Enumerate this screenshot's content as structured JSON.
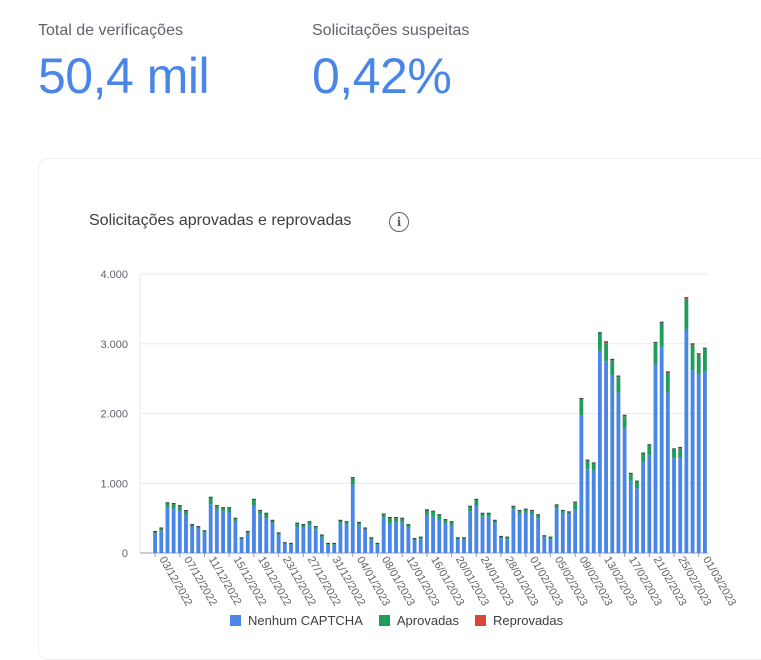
{
  "metrics": {
    "total": {
      "label": "Total de verificações",
      "value": "50,4 mil"
    },
    "suspicious": {
      "label": "Solicitações suspeitas",
      "value": "0,42%"
    }
  },
  "card": {
    "title": "Solicitações aprovadas e reprovadas",
    "info_icon": "info-icon"
  },
  "colors": {
    "none": "#4a86e8",
    "approved": "#1e9e5a",
    "rejected": "#db4437",
    "grid": "#e8eaed",
    "axis": "#9aa0a6"
  },
  "chart_data": {
    "type": "bar",
    "stacked": true,
    "title": "Solicitações aprovadas e reprovadas",
    "xlabel": "",
    "ylabel": "",
    "ylim": [
      0,
      4000
    ],
    "yticks": [
      "0",
      "1.000",
      "2.000",
      "3.000",
      "4.000"
    ],
    "ytick_values": [
      0,
      1000,
      2000,
      3000,
      4000
    ],
    "grid": true,
    "legend_position": "bottom",
    "xtick_labels": [
      "03/12/2022",
      "07/12/2022",
      "11/12/2022",
      "15/12/2022",
      "19/12/2022",
      "23/12/2022",
      "27/12/2022",
      "31/12/2022",
      "04/01/2023",
      "08/01/2023",
      "12/01/2023",
      "16/01/2023",
      "20/01/2023",
      "24/01/2023",
      "28/01/2023",
      "01/02/2023",
      "05/02/2023",
      "09/02/2023",
      "13/02/2023",
      "17/02/2023",
      "21/02/2023",
      "25/02/2023",
      "01/03/2023"
    ],
    "xtick_every": 4,
    "series": [
      {
        "name": "Nenhum CAPTCHA",
        "values": [
          280,
          320,
          650,
          640,
          610,
          550,
          380,
          350,
          290,
          700,
          620,
          600,
          580,
          450,
          200,
          280,
          680,
          560,
          500,
          420,
          260,
          130,
          120,
          380,
          360,
          400,
          340,
          230,
          120,
          120,
          420,
          410,
          980,
          400,
          330,
          200,
          120,
          510,
          420,
          440,
          440,
          360,
          180,
          200,
          550,
          520,
          480,
          420,
          400,
          190,
          190,
          600,
          680,
          520,
          520,
          420,
          210,
          200,
          620,
          560,
          580,
          560,
          500,
          220,
          200,
          640,
          580,
          560,
          620,
          1980,
          1200,
          1180,
          2900,
          2750,
          2540,
          2300,
          1800,
          1030,
          930,
          1300,
          1400,
          2700,
          2950,
          2300,
          1360,
          1360,
          3200,
          2620,
          2580,
          2600
        ]
      },
      {
        "name": "Aprovadas",
        "values": [
          20,
          30,
          60,
          60,
          60,
          50,
          20,
          20,
          20,
          90,
          50,
          40,
          60,
          40,
          10,
          20,
          80,
          40,
          60,
          40,
          20,
          10,
          10,
          40,
          40,
          40,
          30,
          20,
          10,
          10,
          40,
          30,
          90,
          30,
          20,
          10,
          10,
          40,
          80,
          60,
          50,
          40,
          20,
          20,
          60,
          70,
          60,
          50,
          40,
          20,
          20,
          60,
          80,
          40,
          40,
          40,
          20,
          20,
          40,
          40,
          40,
          40,
          40,
          20,
          20,
          40,
          20,
          20,
          100,
          220,
          120,
          100,
          240,
          260,
          220,
          220,
          160,
          100,
          90,
          120,
          140,
          300,
          340,
          280,
          120,
          140,
          440,
          360,
          260,
          320
        ]
      },
      {
        "name": "Reprovadas",
        "values": [
          2,
          2,
          3,
          3,
          3,
          2,
          2,
          2,
          2,
          3,
          3,
          3,
          3,
          2,
          1,
          2,
          3,
          3,
          3,
          2,
          2,
          1,
          1,
          2,
          2,
          2,
          2,
          1,
          1,
          1,
          2,
          2,
          4,
          2,
          2,
          1,
          1,
          2,
          2,
          2,
          2,
          2,
          1,
          1,
          3,
          3,
          3,
          2,
          2,
          1,
          1,
          3,
          3,
          3,
          3,
          2,
          1,
          1,
          3,
          3,
          3,
          3,
          2,
          1,
          1,
          3,
          3,
          3,
          3,
          8,
          5,
          5,
          12,
          12,
          10,
          10,
          8,
          5,
          4,
          6,
          6,
          12,
          12,
          10,
          6,
          6,
          14,
          12,
          10,
          10
        ]
      }
    ]
  },
  "legend": [
    {
      "label": "Nenhum CAPTCHA",
      "color": "#4a86e8"
    },
    {
      "label": "Aprovadas",
      "color": "#1e9e5a"
    },
    {
      "label": "Reprovadas",
      "color": "#db4437"
    }
  ]
}
